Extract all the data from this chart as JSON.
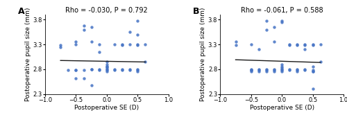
{
  "panel_A": {
    "label": "A",
    "title": "Rho = -0.030, P = 0.792",
    "scatter_x": [
      -0.75,
      -0.75,
      -0.625,
      -0.5,
      -0.5,
      -0.5,
      -0.5,
      -0.5,
      -0.375,
      -0.375,
      -0.375,
      -0.375,
      -0.25,
      -0.25,
      -0.25,
      -0.25,
      -0.25,
      -0.125,
      -0.125,
      -0.125,
      -0.125,
      0.0,
      0.0,
      0.0,
      0.0,
      0.0,
      0.0,
      0.0,
      0.0,
      0.125,
      0.125,
      0.125,
      0.25,
      0.25,
      0.25,
      0.25,
      0.375,
      0.375,
      0.375,
      0.375,
      0.5,
      0.5,
      0.5,
      0.5,
      0.5,
      0.5,
      0.5,
      0.625,
      0.625
    ],
    "scatter_y": [
      3.28,
      3.25,
      2.78,
      3.35,
      3.3,
      2.78,
      2.78,
      2.62,
      3.68,
      3.6,
      2.78,
      2.62,
      3.65,
      3.35,
      2.8,
      2.8,
      2.48,
      3.3,
      3.15,
      2.8,
      2.78,
      2.95,
      2.9,
      2.85,
      2.85,
      2.82,
      2.8,
      2.78,
      2.75,
      3.3,
      2.8,
      2.78,
      3.3,
      3.28,
      2.8,
      2.78,
      3.55,
      3.3,
      2.8,
      2.78,
      3.78,
      3.5,
      3.3,
      3.28,
      2.8,
      2.78,
      2.75,
      3.3,
      2.95
    ],
    "trend_x": [
      -0.75,
      0.625
    ],
    "trend_y": [
      2.975,
      2.945
    ],
    "xlabel": "Postoperative SE (D)",
    "ylabel": "Postoperative pupil size (mm)",
    "xlim": [
      -1,
      1
    ],
    "ylim": [
      2.3,
      3.9
    ],
    "xticks": [
      -1,
      -0.5,
      0,
      0.5,
      1
    ],
    "yticks": [
      2.3,
      2.8,
      3.3,
      3.8
    ]
  },
  "panel_B": {
    "label": "B",
    "title": "Rho = -0.061, P = 0.588",
    "scatter_x": [
      -0.75,
      -0.75,
      -0.5,
      -0.5,
      -0.5,
      -0.5,
      -0.5,
      -0.375,
      -0.375,
      -0.375,
      -0.375,
      -0.25,
      -0.25,
      -0.25,
      -0.25,
      -0.25,
      -0.125,
      -0.125,
      -0.125,
      -0.125,
      -0.125,
      0.0,
      0.0,
      0.0,
      0.0,
      0.0,
      0.0,
      0.0,
      0.0,
      0.125,
      0.125,
      0.125,
      0.125,
      0.25,
      0.25,
      0.25,
      0.25,
      0.25,
      0.375,
      0.375,
      0.375,
      0.375,
      0.375,
      0.5,
      0.5,
      0.5,
      0.5,
      0.5,
      0.5,
      0.5,
      0.625,
      0.625
    ],
    "scatter_y": [
      3.35,
      3.28,
      3.3,
      2.8,
      2.78,
      2.78,
      2.75,
      3.2,
      2.8,
      2.78,
      2.75,
      3.78,
      3.6,
      2.8,
      2.78,
      2.75,
      3.65,
      3.35,
      2.8,
      2.78,
      2.75,
      3.78,
      3.75,
      2.9,
      2.85,
      2.82,
      2.8,
      2.78,
      2.75,
      3.3,
      3.28,
      2.8,
      2.78,
      3.3,
      3.28,
      2.8,
      2.78,
      2.75,
      3.3,
      3.28,
      3.2,
      2.8,
      2.78,
      3.3,
      3.28,
      2.85,
      2.78,
      2.75,
      2.75,
      2.4,
      3.3,
      2.95
    ],
    "trend_x": [
      -0.75,
      0.625
    ],
    "trend_y": [
      2.99,
      2.935
    ],
    "xlabel": "Postoperative SE (D)",
    "ylabel": "Postoperative pupil size (mm)",
    "xlim": [
      -1,
      1
    ],
    "ylim": [
      2.3,
      3.9
    ],
    "xticks": [
      -1,
      -0.5,
      0,
      0.5,
      1
    ],
    "yticks": [
      2.3,
      2.8,
      3.3,
      3.8
    ]
  },
  "scatter_color": "#4472C4",
  "trend_color": "#1a1a1a",
  "bg_color": "#ffffff",
  "font_size_title": 7.0,
  "font_size_label": 6.5,
  "font_size_tick": 6.0,
  "font_size_panel_label": 9,
  "marker_size": 10,
  "marker_alpha": 0.85
}
